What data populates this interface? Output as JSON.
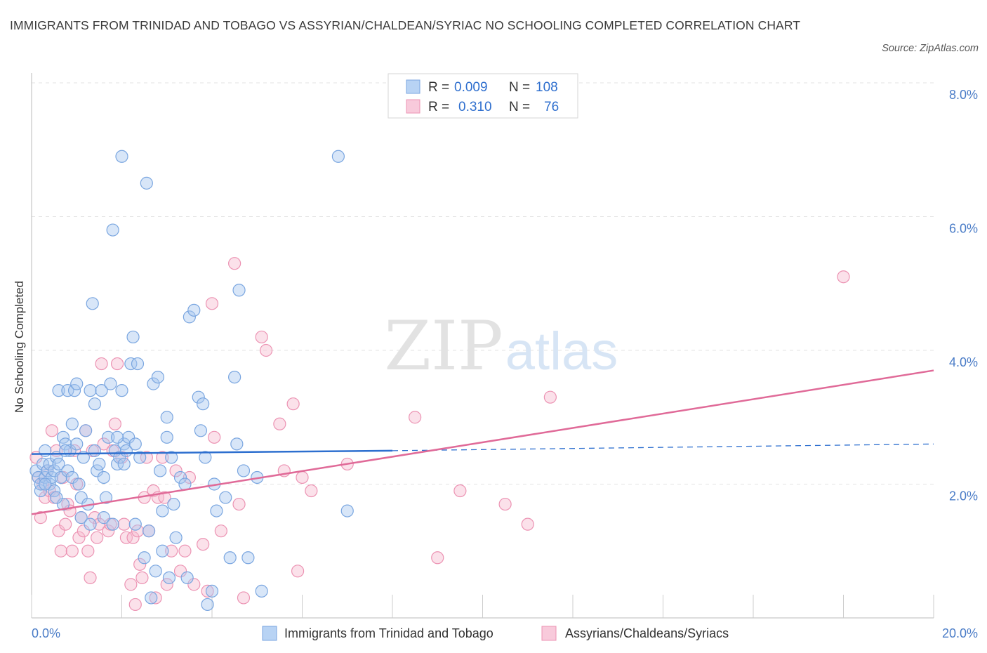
{
  "title": "IMMIGRANTS FROM TRINIDAD AND TOBAGO VS ASSYRIAN/CHALDEAN/SYRIAC NO SCHOOLING COMPLETED CORRELATION CHART",
  "source": "Source: ZipAtlas.com",
  "watermark": {
    "zip": "ZIP",
    "atlas": "atlas"
  },
  "colors": {
    "blue": "#a8c8f0",
    "blue_stroke": "#7aa6e0",
    "blue_line": "#2d6fcf",
    "pink": "#f6bcd0",
    "pink_stroke": "#ec93b3",
    "pink_line": "#e06a98",
    "tick": "#4a7cc7",
    "grid": "#e3e3e3"
  },
  "legend": {
    "rows": [
      {
        "r_label": "R =",
        "r_value": "0.009",
        "n_label": "N =",
        "n_value": "108",
        "color": "blue"
      },
      {
        "r_label": "R =",
        "r_value": "0.310",
        "n_label": "N =",
        "n_value": "76",
        "color": "pink"
      }
    ]
  },
  "chart_data": {
    "type": "scatter",
    "title": "IMMIGRANTS FROM TRINIDAD AND TOBAGO VS ASSYRIAN/CHALDEAN/SYRIAC NO SCHOOLING COMPLETED CORRELATION CHART",
    "xlabel": "",
    "ylabel": "No Schooling Completed",
    "xlim": [
      0,
      20
    ],
    "ylim": [
      0,
      8
    ],
    "x_tick_labels": [
      "0.0%",
      "20.0%"
    ],
    "y_ticks": [
      2,
      4,
      6,
      8
    ],
    "y_tick_labels": [
      "2.0%",
      "4.0%",
      "6.0%",
      "8.0%"
    ],
    "grid": true,
    "legend_position": "bottom",
    "series": [
      {
        "name": "Immigrants from Trinidad and Tobago",
        "color": "blue",
        "R": 0.009,
        "N": 108,
        "trend": {
          "x": [
            0,
            8
          ],
          "y": [
            2.45,
            2.5
          ],
          "dashed_to": [
            20,
            2.6
          ]
        },
        "points": [
          [
            0.1,
            2.2
          ],
          [
            0.15,
            2.1
          ],
          [
            0.2,
            1.9
          ],
          [
            0.2,
            2.0
          ],
          [
            0.25,
            2.3
          ],
          [
            0.3,
            2.1
          ],
          [
            0.3,
            2.5
          ],
          [
            0.35,
            2.2
          ],
          [
            0.4,
            2.0
          ],
          [
            0.4,
            2.3
          ],
          [
            0.45,
            2.1
          ],
          [
            0.5,
            2.2
          ],
          [
            0.5,
            1.9
          ],
          [
            0.55,
            2.4
          ],
          [
            0.6,
            3.4
          ],
          [
            0.6,
            2.3
          ],
          [
            0.65,
            2.1
          ],
          [
            0.7,
            1.7
          ],
          [
            0.7,
            2.7
          ],
          [
            0.75,
            2.6
          ],
          [
            0.8,
            2.2
          ],
          [
            0.8,
            3.4
          ],
          [
            0.85,
            2.5
          ],
          [
            0.9,
            2.9
          ],
          [
            0.9,
            2.1
          ],
          [
            0.95,
            3.4
          ],
          [
            1.0,
            3.5
          ],
          [
            1.0,
            2.6
          ],
          [
            1.1,
            1.8
          ],
          [
            1.1,
            1.5
          ],
          [
            1.15,
            2.4
          ],
          [
            1.2,
            2.8
          ],
          [
            1.25,
            1.7
          ],
          [
            1.3,
            1.4
          ],
          [
            1.3,
            3.4
          ],
          [
            1.35,
            4.7
          ],
          [
            1.4,
            3.2
          ],
          [
            1.4,
            2.5
          ],
          [
            1.45,
            2.2
          ],
          [
            1.5,
            2.3
          ],
          [
            1.55,
            3.4
          ],
          [
            1.6,
            1.5
          ],
          [
            1.6,
            2.1
          ],
          [
            1.65,
            1.8
          ],
          [
            1.7,
            2.7
          ],
          [
            1.75,
            3.5
          ],
          [
            1.8,
            1.4
          ],
          [
            1.8,
            5.8
          ],
          [
            1.85,
            2.5
          ],
          [
            1.9,
            2.3
          ],
          [
            1.95,
            2.4
          ],
          [
            2.0,
            6.9
          ],
          [
            2.0,
            3.4
          ],
          [
            2.05,
            2.6
          ],
          [
            2.1,
            2.5
          ],
          [
            2.15,
            2.7
          ],
          [
            2.2,
            3.8
          ],
          [
            2.25,
            4.2
          ],
          [
            2.3,
            1.4
          ],
          [
            2.3,
            2.6
          ],
          [
            2.35,
            3.8
          ],
          [
            2.4,
            2.4
          ],
          [
            2.5,
            0.9
          ],
          [
            2.55,
            6.5
          ],
          [
            2.6,
            1.3
          ],
          [
            2.65,
            0.3
          ],
          [
            2.7,
            3.5
          ],
          [
            2.75,
            0.7
          ],
          [
            2.8,
            3.6
          ],
          [
            2.85,
            2.2
          ],
          [
            2.9,
            1.0
          ],
          [
            2.9,
            1.6
          ],
          [
            3.0,
            2.7
          ],
          [
            3.0,
            3.0
          ],
          [
            3.05,
            0.6
          ],
          [
            3.1,
            2.4
          ],
          [
            3.15,
            1.7
          ],
          [
            3.2,
            1.2
          ],
          [
            3.3,
            2.1
          ],
          [
            3.4,
            2.0
          ],
          [
            3.45,
            0.6
          ],
          [
            3.5,
            4.5
          ],
          [
            3.6,
            4.6
          ],
          [
            3.7,
            3.3
          ],
          [
            3.75,
            2.8
          ],
          [
            3.8,
            3.2
          ],
          [
            3.85,
            2.4
          ],
          [
            3.9,
            0.2
          ],
          [
            4.0,
            0.4
          ],
          [
            4.05,
            2.0
          ],
          [
            4.1,
            1.6
          ],
          [
            4.3,
            1.8
          ],
          [
            4.4,
            0.9
          ],
          [
            4.5,
            3.6
          ],
          [
            4.55,
            2.6
          ],
          [
            4.6,
            4.9
          ],
          [
            4.7,
            2.2
          ],
          [
            4.8,
            0.9
          ],
          [
            5.0,
            2.1
          ],
          [
            5.1,
            0.4
          ],
          [
            6.8,
            6.9
          ],
          [
            7.0,
            1.6
          ],
          [
            0.3,
            2.0
          ],
          [
            0.55,
            1.8
          ],
          [
            0.75,
            2.5
          ],
          [
            1.05,
            2.0
          ],
          [
            1.9,
            2.7
          ],
          [
            2.05,
            2.3
          ]
        ]
      },
      {
        "name": "Assyrians/Chaldeans/Syriacs",
        "color": "pink",
        "R": 0.31,
        "N": 76,
        "trend": {
          "x": [
            0,
            20
          ],
          "y": [
            1.55,
            3.7
          ]
        },
        "points": [
          [
            0.1,
            2.4
          ],
          [
            0.15,
            2.1
          ],
          [
            0.2,
            1.5
          ],
          [
            0.25,
            2.0
          ],
          [
            0.3,
            1.8
          ],
          [
            0.35,
            2.2
          ],
          [
            0.4,
            1.9
          ],
          [
            0.45,
            2.8
          ],
          [
            0.5,
            1.8
          ],
          [
            0.55,
            2.5
          ],
          [
            0.6,
            1.3
          ],
          [
            0.65,
            1.0
          ],
          [
            0.7,
            2.1
          ],
          [
            0.75,
            1.4
          ],
          [
            0.8,
            1.7
          ],
          [
            0.85,
            1.6
          ],
          [
            0.9,
            1.0
          ],
          [
            0.95,
            2.5
          ],
          [
            1.0,
            2.0
          ],
          [
            1.05,
            1.2
          ],
          [
            1.1,
            1.5
          ],
          [
            1.15,
            1.3
          ],
          [
            1.2,
            2.8
          ],
          [
            1.25,
            1.0
          ],
          [
            1.3,
            0.6
          ],
          [
            1.35,
            2.5
          ],
          [
            1.4,
            1.5
          ],
          [
            1.45,
            1.2
          ],
          [
            1.5,
            1.4
          ],
          [
            1.55,
            3.8
          ],
          [
            1.6,
            2.6
          ],
          [
            1.7,
            1.3
          ],
          [
            1.75,
            1.4
          ],
          [
            1.8,
            2.5
          ],
          [
            1.85,
            2.9
          ],
          [
            1.9,
            3.8
          ],
          [
            2.0,
            2.4
          ],
          [
            2.05,
            1.4
          ],
          [
            2.1,
            1.2
          ],
          [
            2.2,
            0.5
          ],
          [
            2.25,
            1.2
          ],
          [
            2.3,
            0.2
          ],
          [
            2.35,
            1.3
          ],
          [
            2.4,
            0.8
          ],
          [
            2.45,
            0.6
          ],
          [
            2.5,
            1.8
          ],
          [
            2.55,
            2.4
          ],
          [
            2.6,
            1.3
          ],
          [
            2.7,
            1.9
          ],
          [
            2.75,
            0.3
          ],
          [
            2.8,
            1.8
          ],
          [
            2.9,
            2.4
          ],
          [
            2.95,
            1.8
          ],
          [
            3.0,
            0.5
          ],
          [
            3.1,
            1.0
          ],
          [
            3.2,
            2.2
          ],
          [
            3.3,
            0.7
          ],
          [
            3.4,
            1.0
          ],
          [
            3.5,
            2.1
          ],
          [
            3.6,
            0.5
          ],
          [
            3.8,
            1.1
          ],
          [
            3.9,
            0.4
          ],
          [
            4.0,
            4.7
          ],
          [
            4.05,
            2.7
          ],
          [
            4.2,
            1.3
          ],
          [
            4.5,
            5.3
          ],
          [
            4.6,
            1.7
          ],
          [
            4.7,
            0.3
          ],
          [
            5.1,
            4.2
          ],
          [
            5.2,
            4.0
          ],
          [
            5.5,
            2.9
          ],
          [
            5.6,
            2.2
          ],
          [
            6.0,
            2.1
          ],
          [
            6.2,
            1.9
          ],
          [
            7.0,
            2.3
          ],
          [
            8.5,
            3.0
          ]
        ],
        "outliers": [
          [
            9.0,
            0.9
          ],
          [
            9.5,
            1.9
          ],
          [
            10.5,
            1.7
          ],
          [
            11.0,
            1.4
          ],
          [
            11.5,
            3.3
          ],
          [
            18.0,
            5.1
          ],
          [
            5.8,
            3.2
          ],
          [
            5.9,
            0.7
          ]
        ]
      }
    ]
  },
  "bottom_legend": [
    {
      "label": "Immigrants from Trinidad and Tobago",
      "color": "blue"
    },
    {
      "label": "Assyrians/Chaldeans/Syriacs",
      "color": "pink"
    }
  ]
}
